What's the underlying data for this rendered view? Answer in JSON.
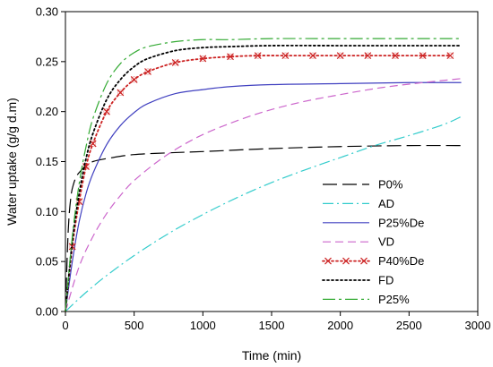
{
  "chart_data": {
    "type": "line",
    "title": "",
    "xlabel": "Time (min)",
    "ylabel": "Water uptake (g/g d.m)",
    "xlim": [
      0,
      3000
    ],
    "ylim": [
      0,
      0.3
    ],
    "x_ticks": [
      0,
      500,
      1000,
      1500,
      2000,
      2500,
      3000
    ],
    "y_ticks": [
      0.0,
      0.05,
      0.1,
      0.15,
      0.2,
      0.25,
      0.3
    ],
    "x_tick_labels": [
      "0",
      "500",
      "1000",
      "1500",
      "2000",
      "2500",
      "3000"
    ],
    "y_tick_labels": [
      "0.00",
      "0.05",
      "0.10",
      "0.15",
      "0.20",
      "0.25",
      "0.30"
    ],
    "grid": false,
    "legend_position": "bottom-right",
    "series": [
      {
        "name": "P0%",
        "color": "#000000",
        "dash": "long-dash",
        "marker": "none",
        "x": [
          0,
          20,
          40,
          60,
          80,
          100,
          150,
          200,
          300,
          500,
          800,
          1000,
          1500,
          2000,
          2500,
          2880
        ],
        "y": [
          0.0,
          0.08,
          0.115,
          0.128,
          0.135,
          0.139,
          0.146,
          0.15,
          0.153,
          0.157,
          0.159,
          0.16,
          0.163,
          0.165,
          0.166,
          0.166
        ]
      },
      {
        "name": "AD",
        "color": "#33CCCC",
        "dash": "dash-dot",
        "marker": "none",
        "x": [
          0,
          100,
          200,
          300,
          500,
          750,
          1000,
          1250,
          1500,
          1750,
          2000,
          2250,
          2500,
          2750,
          2880
        ],
        "y": [
          0.0,
          0.013,
          0.025,
          0.036,
          0.056,
          0.078,
          0.097,
          0.114,
          0.129,
          0.142,
          0.154,
          0.166,
          0.176,
          0.187,
          0.195
        ]
      },
      {
        "name": "P25%De",
        "color": "#4040C0",
        "dash": "solid",
        "marker": "none",
        "x": [
          0,
          50,
          100,
          150,
          200,
          300,
          400,
          500,
          600,
          800,
          1000,
          1200,
          1500,
          2000,
          2500,
          2880
        ],
        "y": [
          0.0,
          0.05,
          0.09,
          0.118,
          0.138,
          0.167,
          0.186,
          0.199,
          0.208,
          0.218,
          0.222,
          0.225,
          0.227,
          0.228,
          0.229,
          0.229
        ]
      },
      {
        "name": "VD",
        "color": "#CC66CC",
        "dash": "dash",
        "marker": "none",
        "x": [
          0,
          100,
          200,
          300,
          400,
          500,
          700,
          900,
          1100,
          1400,
          1700,
          2000,
          2300,
          2600,
          2880
        ],
        "y": [
          0.0,
          0.045,
          0.075,
          0.098,
          0.116,
          0.131,
          0.153,
          0.17,
          0.183,
          0.198,
          0.209,
          0.217,
          0.224,
          0.229,
          0.233
        ]
      },
      {
        "name": "P40%De",
        "color": "#CC2222",
        "dash": "dot",
        "marker": "x",
        "x": [
          0,
          50,
          100,
          150,
          200,
          300,
          400,
          500,
          600,
          800,
          1000,
          1200,
          1400,
          1600,
          1800,
          2000,
          2200,
          2400,
          2600,
          2800
        ],
        "y": [
          0.0,
          0.065,
          0.11,
          0.145,
          0.168,
          0.2,
          0.219,
          0.232,
          0.24,
          0.249,
          0.253,
          0.255,
          0.256,
          0.256,
          0.256,
          0.256,
          0.256,
          0.256,
          0.256,
          0.256
        ]
      },
      {
        "name": "FD",
        "color": "#000000",
        "dash": "dot",
        "marker": "none",
        "x": [
          0,
          50,
          100,
          150,
          200,
          300,
          400,
          500,
          600,
          800,
          1000,
          1200,
          1500,
          2000,
          2500,
          2880
        ],
        "y": [
          0.0,
          0.07,
          0.118,
          0.153,
          0.178,
          0.212,
          0.232,
          0.245,
          0.253,
          0.261,
          0.264,
          0.265,
          0.266,
          0.266,
          0.266,
          0.266
        ]
      },
      {
        "name": "P25%",
        "color": "#33AA33",
        "dash": "long-dash-dot",
        "marker": "none",
        "x": [
          0,
          50,
          100,
          150,
          200,
          300,
          400,
          500,
          600,
          800,
          1000,
          1200,
          1500,
          2000,
          2500,
          2880
        ],
        "y": [
          0.0,
          0.075,
          0.128,
          0.165,
          0.193,
          0.228,
          0.248,
          0.259,
          0.265,
          0.27,
          0.272,
          0.272,
          0.273,
          0.273,
          0.273,
          0.273
        ]
      }
    ]
  }
}
